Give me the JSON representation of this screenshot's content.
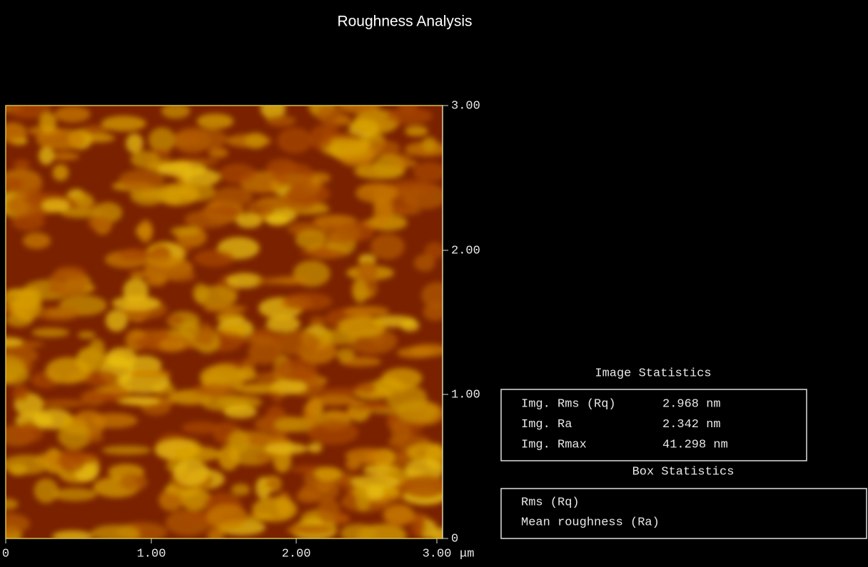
{
  "header": {
    "title": "Roughness Analysis"
  },
  "image": {
    "y_ticks": [
      "3.00",
      "2.00",
      "1.00",
      "0"
    ],
    "x_ticks": [
      "0",
      "1.00",
      "2.00",
      "3.00"
    ],
    "x_unit": "μm"
  },
  "image_statistics": {
    "heading": "Image Statistics",
    "rows": [
      [
        "Img. Rms (Rq)",
        "2.968 nm"
      ],
      [
        "Img. Ra",
        "2.342 nm"
      ],
      [
        "Img. Rmax",
        "41.298 nm"
      ]
    ]
  },
  "box_statistics": {
    "heading": "Box Statistics",
    "rows": [
      "Rms (Rq)",
      "Mean roughness (Ra)"
    ]
  }
}
